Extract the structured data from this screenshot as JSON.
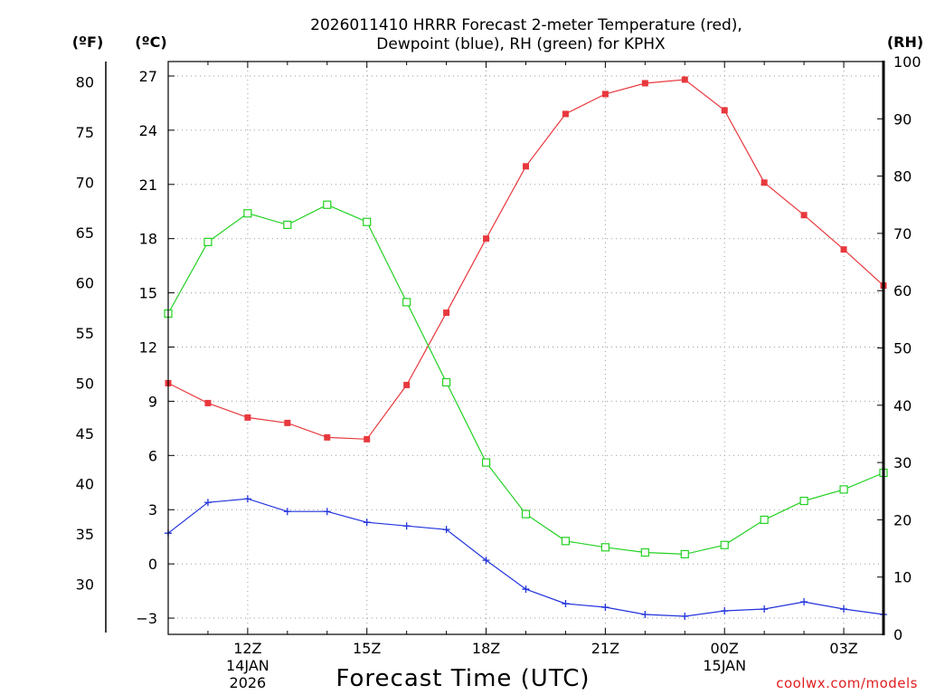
{
  "chart_data": {
    "type": "line",
    "title": [
      "2026011410 HRRR Forecast 2-meter Temperature (red),",
      "Dewpoint (blue), RH (green) for KPHX"
    ],
    "xlabel": "Forecast Time (UTC)",
    "credit": "coolwx.com/models",
    "units": {
      "fahrenheit": "(ºF)",
      "celsius": "(ºC)",
      "rh": "(RH)"
    },
    "x_hours": [
      10,
      11,
      12,
      13,
      14,
      15,
      16,
      17,
      18,
      19,
      20,
      21,
      22,
      23,
      24,
      25,
      26,
      27,
      28
    ],
    "xlim": [
      10,
      28
    ],
    "x_ticks": [
      {
        "hour": 12,
        "lines": [
          "12Z",
          "14JAN",
          "2026"
        ]
      },
      {
        "hour": 15,
        "lines": [
          "15Z"
        ]
      },
      {
        "hour": 18,
        "lines": [
          "18Z"
        ]
      },
      {
        "hour": 21,
        "lines": [
          "21Z"
        ]
      },
      {
        "hour": 24,
        "lines": [
          "00Z",
          "15JAN"
        ]
      },
      {
        "hour": 27,
        "lines": [
          "03Z"
        ]
      }
    ],
    "celsius_axis": {
      "ylim": [
        -3.9,
        27.8
      ],
      "ticks": [
        -3,
        0,
        3,
        6,
        9,
        12,
        15,
        18,
        21,
        24,
        27
      ]
    },
    "fahrenheit_axis": {
      "ticks": [
        30,
        35,
        40,
        45,
        50,
        55,
        60,
        65,
        70,
        75,
        80
      ]
    },
    "rh_axis": {
      "ylim": [
        0,
        100
      ],
      "ticks": [
        0,
        10,
        20,
        30,
        40,
        50,
        60,
        70,
        80,
        90,
        100
      ]
    },
    "series": [
      {
        "name": "Temperature",
        "axis": "celsius",
        "color": "#e8383d",
        "marker": "filled-square",
        "values": [
          10.0,
          8.9,
          8.1,
          7.8,
          7.0,
          6.9,
          9.9,
          13.9,
          18.0,
          22.0,
          24.9,
          26.0,
          26.6,
          26.8,
          25.1,
          21.1,
          19.3,
          17.4,
          15.4
        ]
      },
      {
        "name": "Dewpoint",
        "axis": "celsius",
        "color": "#2233dd",
        "marker": "plus",
        "values": [
          1.7,
          3.4,
          3.6,
          2.9,
          2.9,
          2.3,
          2.1,
          1.9,
          0.2,
          -1.4,
          -2.2,
          -2.4,
          -2.8,
          -2.9,
          -2.6,
          -2.5,
          -2.1,
          -2.5,
          -2.8
        ]
      },
      {
        "name": "RH",
        "axis": "rh",
        "color": "#22d122",
        "marker": "open-square",
        "values": [
          56,
          68.5,
          73.5,
          71.5,
          75,
          72,
          58,
          44,
          30,
          21,
          16.3,
          15.2,
          14.3,
          14,
          15.6,
          20,
          23.3,
          25.3,
          28.2
        ]
      }
    ]
  }
}
